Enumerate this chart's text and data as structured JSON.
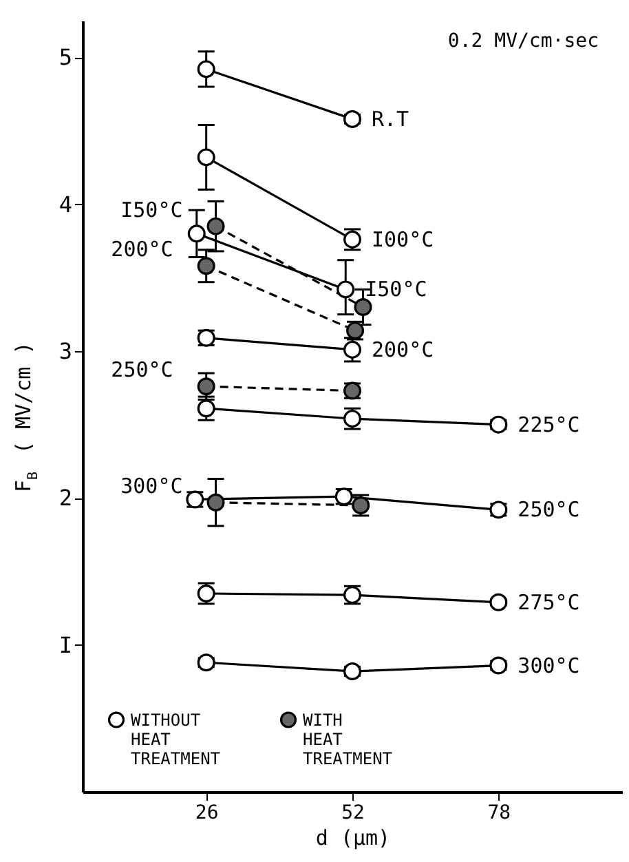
{
  "chart_data": {
    "type": "line",
    "xlabel": "d (μm)",
    "ylabel": "F$_{B}$ ( MV/cm )",
    "xlim": [
      4,
      100
    ],
    "ylim": [
      0,
      5.25
    ],
    "xticks": [
      26,
      52,
      78
    ],
    "yticks": [
      {
        "value": 1,
        "label": "I"
      },
      2,
      3,
      4,
      5
    ],
    "grid": false,
    "legend": "bottom left",
    "marker": "circle",
    "series": [
      {
        "name": "WITHOUT HEAT TREATMENT",
        "color": "#ffffff",
        "line_style": "solid",
        "x": [
          26,
          52
        ],
        "values": [
          4.92,
          4.58
        ],
        "errors": [
          0.12,
          0.03
        ]
      },
      {
        "color": "#ffffff",
        "line_style": "solid",
        "x": [
          26,
          52
        ],
        "values": [
          4.32,
          3.76
        ],
        "errors": [
          0.22,
          0.07
        ]
      },
      {
        "color": "#ffffff",
        "line_style": "solid",
        "x": [
          24.3,
          50.8
        ],
        "values": [
          3.8,
          3.42
        ],
        "errors": [
          0.16,
          [
            3.25,
            3.62
          ]
        ]
      },
      {
        "name": "WITH HEAT TREATMENT",
        "color": "#666666",
        "line_style": "dashed",
        "x": [
          27.7,
          53.9
        ],
        "values": [
          3.85,
          3.3
        ],
        "errors": [
          0.17,
          0.12
        ]
      },
      {
        "color": "#666666",
        "line_style": "dashed",
        "x": [
          26,
          52.5
        ],
        "values": [
          3.58,
          3.14
        ],
        "errors": [
          0.11,
          0.06
        ]
      },
      {
        "color": "#ffffff",
        "line_style": "solid",
        "x": [
          26,
          52
        ],
        "values": [
          3.09,
          3.01
        ],
        "errors": [
          0.05,
          0.08
        ]
      },
      {
        "color": "#666666",
        "line_style": "dashed",
        "x": [
          26,
          52
        ],
        "values": [
          2.76,
          2.73
        ],
        "errors": [
          0.09,
          0.05
        ]
      },
      {
        "color": "#ffffff",
        "line_style": "solid",
        "x": [
          26,
          52,
          78
        ],
        "values": [
          2.61,
          2.54,
          2.5
        ],
        "errors": [
          0.08,
          0.07,
          0.03
        ]
      },
      {
        "color": "#ffffff",
        "line_style": "solid",
        "x": [
          24,
          50.5,
          78
        ],
        "values": [
          1.99,
          2.01,
          1.92
        ],
        "errors": [
          0.05,
          0.05,
          0.04
        ]
      },
      {
        "color": "#666666",
        "line_style": "dashed",
        "x": [
          27.7,
          53.5
        ],
        "values": [
          1.97,
          1.95
        ],
        "errors": [
          0.16,
          0.07
        ]
      },
      {
        "color": "#ffffff",
        "line_style": "solid",
        "x": [
          26,
          52,
          78
        ],
        "values": [
          1.35,
          1.34,
          1.29
        ],
        "errors": [
          0.07,
          0.06,
          0.02
        ]
      },
      {
        "color": "#ffffff",
        "line_style": "solid",
        "x": [
          26,
          52,
          78
        ],
        "values": [
          0.88,
          0.82,
          0.86
        ],
        "errors": [
          0.03,
          0.03,
          0.03
        ]
      }
    ],
    "annotations": [
      "0.2 MV/cm·sec",
      {
        "text": "R.T",
        "x": 52,
        "y": 4.58
      },
      {
        "text": "I00°C",
        "x": 52,
        "y": 3.76
      },
      {
        "text": "I50°C",
        "x": 50.8,
        "y": 3.42
      },
      {
        "text": "200°C",
        "x": 52,
        "y": 3.01
      },
      {
        "text": "225°C",
        "x": 78,
        "y": 2.5
      },
      {
        "text": "250°C",
        "x": 78,
        "y": 1.92
      },
      {
        "text": "275°C",
        "x": 78,
        "y": 1.29
      },
      {
        "text": "300°C",
        "x": 78,
        "y": 0.86
      },
      {
        "text": "I50°C",
        "x": 27.7,
        "y": 3.85
      },
      {
        "text": "200°C",
        "x": 26,
        "y": 3.58
      },
      {
        "text": "250°C",
        "x": 26,
        "y": 2.76
      },
      {
        "text": "300°C",
        "x": 27.7,
        "y": 1.97
      }
    ]
  }
}
